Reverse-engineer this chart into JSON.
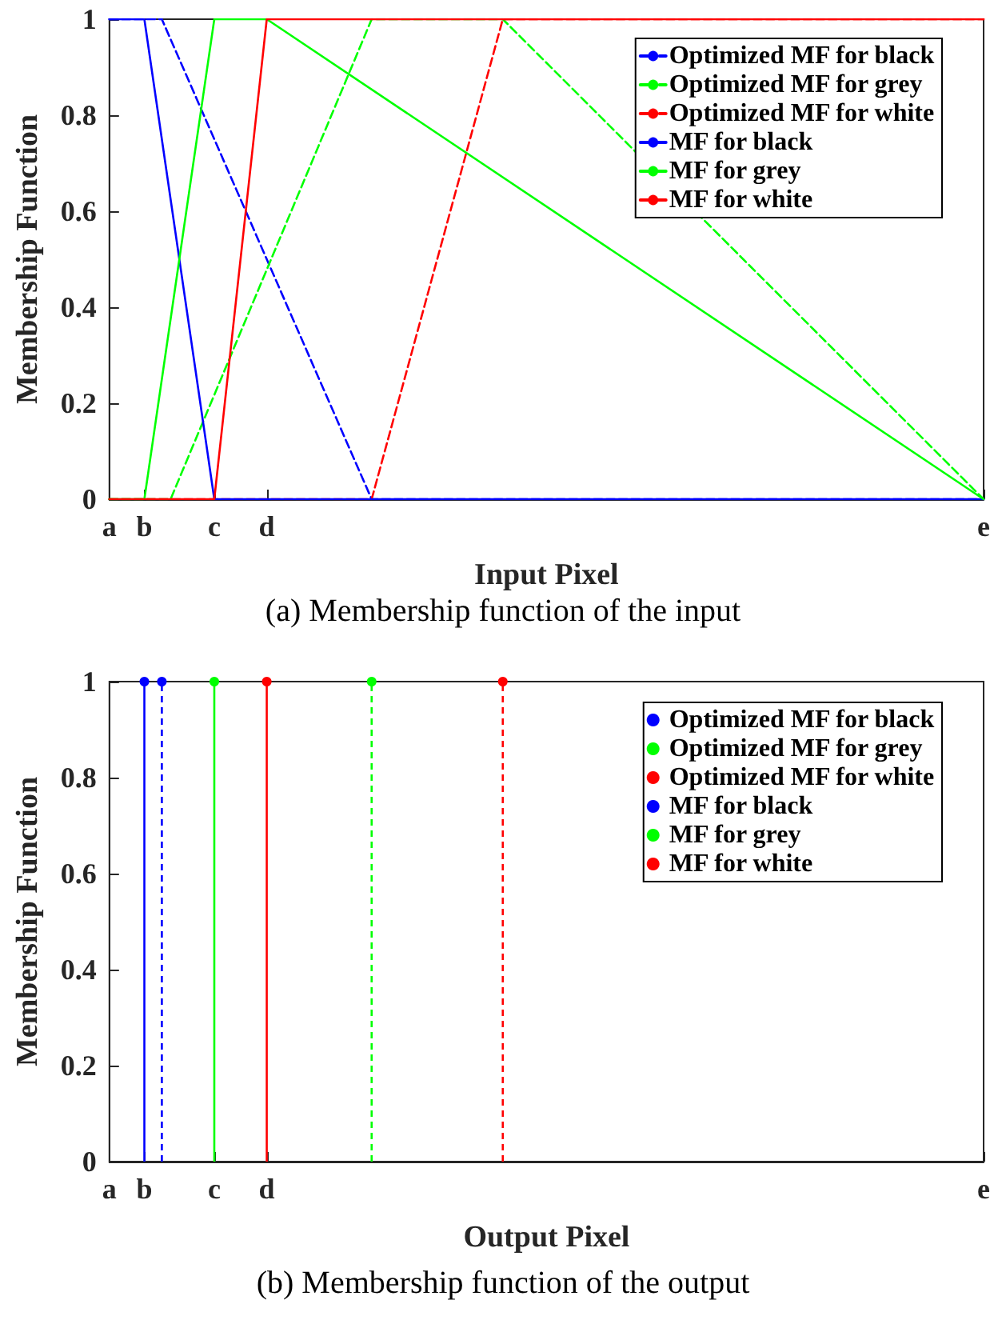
{
  "chart_data": [
    {
      "type": "line",
      "xlabel": "Input Pixel",
      "ylabel": "Membership Function",
      "annotations": [
        "(a) Membership function of the input"
      ],
      "categories": [
        "a",
        null,
        null,
        null,
        "b",
        null,
        null,
        null,
        null,
        null,
        null,
        null,
        "c",
        null,
        null,
        null,
        null,
        null,
        "d",
        null,
        null,
        null,
        null,
        null,
        null,
        null,
        null,
        null,
        null,
        null,
        null,
        null,
        null,
        null,
        null,
        null,
        null,
        null,
        null,
        null,
        null,
        null,
        null,
        null,
        null,
        null,
        null,
        null,
        null,
        null,
        null,
        null,
        null,
        null,
        null,
        null,
        null,
        null,
        null,
        null,
        null,
        null,
        null,
        null,
        null,
        null,
        null,
        null,
        null,
        null,
        null,
        null,
        null,
        null,
        null,
        null,
        null,
        null,
        null,
        null,
        null,
        null,
        null,
        null,
        null,
        null,
        null,
        null,
        null,
        null,
        null,
        null,
        null,
        null,
        null,
        null,
        null,
        null,
        null,
        null,
        "e"
      ],
      "ylim": [
        0,
        1
      ],
      "yticks": [
        0,
        0.2,
        0.4,
        0.6,
        0.8,
        1
      ],
      "grid": false,
      "legend": "top right",
      "marker": "none",
      "series": [
        {
          "name": "Optimized MF for black",
          "color": "#0000ff",
          "line_style": "dashed",
          "values": [
            1,
            null,
            null,
            null,
            null,
            null,
            1,
            null,
            null,
            null,
            null,
            null,
            null,
            null,
            null,
            null,
            null,
            null,
            null,
            null,
            null,
            null,
            null,
            null,
            null,
            null,
            null,
            null,
            null,
            null,
            0,
            null,
            null,
            null,
            null,
            null,
            null,
            null,
            null,
            null,
            null,
            null,
            null,
            null,
            null,
            null,
            null,
            null,
            null,
            null,
            null,
            null,
            null,
            null,
            null,
            null,
            null,
            null,
            null,
            null,
            null,
            null,
            null,
            null,
            null,
            null,
            null,
            null,
            null,
            null,
            null,
            null,
            null,
            null,
            null,
            null,
            null,
            null,
            null,
            null,
            null,
            null,
            null,
            null,
            null,
            null,
            null,
            null,
            null,
            null,
            null,
            null,
            null,
            null,
            null,
            null,
            null,
            null,
            null,
            null,
            0
          ]
        },
        {
          "name": "Optimized MF for grey",
          "color": "#00ff00",
          "line_style": "dashed",
          "values": [
            0,
            null,
            null,
            null,
            null,
            null,
            null,
            0,
            null,
            null,
            null,
            null,
            null,
            null,
            null,
            null,
            null,
            null,
            null,
            null,
            null,
            null,
            null,
            null,
            null,
            null,
            null,
            null,
            null,
            null,
            1,
            null,
            null,
            null,
            null,
            null,
            null,
            null,
            null,
            null,
            null,
            null,
            null,
            null,
            null,
            1,
            null,
            null,
            null,
            null,
            null,
            null,
            null,
            null,
            null,
            null,
            null,
            null,
            null,
            null,
            null,
            null,
            null,
            null,
            null,
            null,
            null,
            null,
            null,
            null,
            null,
            null,
            null,
            null,
            null,
            null,
            null,
            null,
            null,
            null,
            null,
            null,
            null,
            null,
            null,
            null,
            null,
            null,
            null,
            null,
            null,
            null,
            null,
            null,
            null,
            null,
            null,
            null,
            null,
            null,
            0
          ]
        },
        {
          "name": "Optimized MF for white",
          "color": "#ff0000",
          "line_style": "dashed",
          "values": [
            0,
            null,
            null,
            null,
            null,
            null,
            null,
            null,
            null,
            null,
            null,
            null,
            null,
            null,
            null,
            null,
            null,
            null,
            null,
            null,
            null,
            null,
            null,
            null,
            null,
            null,
            null,
            null,
            null,
            null,
            0,
            null,
            null,
            null,
            null,
            null,
            null,
            null,
            null,
            null,
            null,
            null,
            null,
            null,
            null,
            1,
            null,
            null,
            null,
            null,
            null,
            null,
            null,
            null,
            null,
            null,
            null,
            null,
            null,
            null,
            null,
            null,
            null,
            null,
            null,
            null,
            null,
            null,
            null,
            null,
            null,
            null,
            null,
            null,
            null,
            null,
            null,
            null,
            null,
            null,
            null,
            null,
            null,
            null,
            null,
            null,
            null,
            null,
            null,
            null,
            null,
            null,
            null,
            null,
            null,
            null,
            null,
            null,
            null,
            null,
            1
          ]
        },
        {
          "name": "MF for black",
          "color": "#0000ff",
          "line_style": "solid",
          "values": [
            1,
            null,
            null,
            null,
            1,
            null,
            null,
            null,
            null,
            null,
            null,
            null,
            0,
            null,
            null,
            null,
            null,
            null,
            null,
            null,
            null,
            null,
            null,
            null,
            null,
            null,
            null,
            null,
            null,
            null,
            null,
            null,
            null,
            null,
            null,
            null,
            null,
            null,
            null,
            null,
            null,
            null,
            null,
            null,
            null,
            null,
            null,
            null,
            null,
            null,
            null,
            null,
            null,
            null,
            null,
            null,
            null,
            null,
            null,
            null,
            null,
            null,
            null,
            null,
            null,
            null,
            null,
            null,
            null,
            null,
            null,
            null,
            null,
            null,
            null,
            null,
            null,
            null,
            null,
            null,
            null,
            null,
            null,
            null,
            null,
            null,
            null,
            null,
            null,
            null,
            null,
            null,
            null,
            null,
            null,
            null,
            null,
            null,
            null,
            null,
            0
          ]
        },
        {
          "name": "MF for grey",
          "color": "#00ff00",
          "line_style": "solid",
          "values": [
            0,
            null,
            null,
            null,
            0,
            null,
            null,
            null,
            null,
            null,
            null,
            null,
            1,
            null,
            null,
            null,
            null,
            null,
            1,
            null,
            null,
            null,
            null,
            null,
            null,
            null,
            null,
            null,
            null,
            null,
            null,
            null,
            null,
            null,
            null,
            null,
            null,
            null,
            null,
            null,
            null,
            null,
            null,
            null,
            null,
            null,
            null,
            null,
            null,
            null,
            null,
            null,
            null,
            null,
            null,
            null,
            null,
            null,
            null,
            null,
            null,
            null,
            null,
            null,
            null,
            null,
            null,
            null,
            null,
            null,
            null,
            null,
            null,
            null,
            null,
            null,
            null,
            null,
            null,
            null,
            null,
            null,
            null,
            null,
            null,
            null,
            null,
            null,
            null,
            null,
            null,
            null,
            null,
            null,
            null,
            null,
            null,
            null,
            null,
            null,
            0
          ]
        },
        {
          "name": "MF for white",
          "color": "#ff0000",
          "line_style": "solid",
          "values": [
            0,
            null,
            null,
            null,
            null,
            null,
            null,
            null,
            null,
            null,
            null,
            null,
            0,
            null,
            null,
            null,
            null,
            null,
            1,
            null,
            null,
            null,
            null,
            null,
            null,
            null,
            null,
            null,
            null,
            null,
            null,
            null,
            null,
            null,
            null,
            null,
            null,
            null,
            null,
            null,
            null,
            null,
            null,
            null,
            null,
            null,
            null,
            null,
            null,
            null,
            null,
            null,
            null,
            null,
            null,
            null,
            null,
            null,
            null,
            null,
            null,
            null,
            null,
            null,
            null,
            null,
            null,
            null,
            null,
            null,
            null,
            null,
            null,
            null,
            null,
            null,
            null,
            null,
            null,
            null,
            null,
            null,
            null,
            null,
            null,
            null,
            null,
            null,
            null,
            null,
            null,
            null,
            null,
            null,
            null,
            null,
            null,
            null,
            null,
            null,
            1
          ]
        }
      ]
    },
    {
      "type": "lollipop",
      "xlabel": "Output Pixel",
      "ylabel": "Membership Function",
      "annotations": [
        "(b) Membership function of the output"
      ],
      "categories": [
        "a",
        null,
        null,
        null,
        "b",
        null,
        null,
        null,
        null,
        null,
        null,
        null,
        "c",
        null,
        null,
        null,
        null,
        null,
        "d",
        null,
        null,
        null,
        null,
        null,
        null,
        null,
        null,
        null,
        null,
        null,
        null,
        null,
        null,
        null,
        null,
        null,
        null,
        null,
        null,
        null,
        null,
        null,
        null,
        null,
        null,
        null,
        null,
        null,
        null,
        null,
        null,
        null,
        null,
        null,
        null,
        null,
        null,
        null,
        null,
        null,
        null,
        null,
        null,
        null,
        null,
        null,
        null,
        null,
        null,
        null,
        null,
        null,
        null,
        null,
        null,
        null,
        null,
        null,
        null,
        null,
        null,
        null,
        null,
        null,
        null,
        null,
        null,
        null,
        null,
        null,
        null,
        null,
        null,
        null,
        null,
        null,
        null,
        null,
        null,
        null,
        "e"
      ],
      "ylim": [
        0,
        1
      ],
      "yticks": [
        0,
        0.2,
        0.4,
        0.6,
        0.8,
        1
      ],
      "grid": false,
      "legend": "top right",
      "marker": "circle",
      "series": [
        {
          "name": "Optimized MF for black",
          "color": "#0000ff",
          "line_style": "dashed",
          "values": [
            null,
            null,
            null,
            null,
            null,
            null,
            1,
            null,
            null,
            null,
            null,
            null,
            null,
            null,
            null,
            null,
            null,
            null,
            null,
            null,
            null,
            null,
            null,
            null,
            null,
            null,
            null,
            null,
            null,
            null,
            null,
            null,
            null,
            null,
            null,
            null,
            null,
            null,
            null,
            null,
            null,
            null,
            null,
            null,
            null,
            null,
            null,
            null,
            null,
            null,
            null,
            null,
            null,
            null,
            null,
            null,
            null,
            null,
            null,
            null,
            null,
            null,
            null,
            null,
            null,
            null,
            null,
            null,
            null,
            null,
            null,
            null,
            null,
            null,
            null,
            null,
            null,
            null,
            null,
            null,
            null,
            null,
            null,
            null,
            null,
            null,
            null,
            null,
            null,
            null,
            null,
            null,
            null,
            null,
            null,
            null,
            null,
            null,
            null,
            null,
            null
          ]
        },
        {
          "name": "Optimized MF for grey",
          "color": "#00ff00",
          "line_style": "dashed",
          "values": [
            null,
            null,
            null,
            null,
            null,
            null,
            null,
            null,
            null,
            null,
            null,
            null,
            null,
            null,
            null,
            null,
            null,
            null,
            null,
            null,
            null,
            null,
            null,
            null,
            null,
            null,
            null,
            null,
            null,
            null,
            1,
            null,
            null,
            null,
            null,
            null,
            null,
            null,
            null,
            null,
            null,
            null,
            null,
            null,
            null,
            null,
            null,
            null,
            null,
            null,
            null,
            null,
            null,
            null,
            null,
            null,
            null,
            null,
            null,
            null,
            null,
            null,
            null,
            null,
            null,
            null,
            null,
            null,
            null,
            null,
            null,
            null,
            null,
            null,
            null,
            null,
            null,
            null,
            null,
            null,
            null,
            null,
            null,
            null,
            null,
            null,
            null,
            null,
            null,
            null,
            null,
            null,
            null,
            null,
            null,
            null,
            null,
            null,
            null,
            null,
            null
          ]
        },
        {
          "name": "Optimized MF for white",
          "color": "#ff0000",
          "line_style": "dashed",
          "values": [
            null,
            null,
            null,
            null,
            null,
            null,
            null,
            null,
            null,
            null,
            null,
            null,
            null,
            null,
            null,
            null,
            null,
            null,
            null,
            null,
            null,
            null,
            null,
            null,
            null,
            null,
            null,
            null,
            null,
            null,
            null,
            null,
            null,
            null,
            null,
            null,
            null,
            null,
            null,
            null,
            null,
            null,
            null,
            null,
            null,
            1,
            null,
            null,
            null,
            null,
            null,
            null,
            null,
            null,
            null,
            null,
            null,
            null,
            null,
            null,
            null,
            null,
            null,
            null,
            null,
            null,
            null,
            null,
            null,
            null,
            null,
            null,
            null,
            null,
            null,
            null,
            null,
            null,
            null,
            null,
            null,
            null,
            null,
            null,
            null,
            null,
            null,
            null,
            null,
            null,
            null,
            null,
            null,
            null,
            null,
            null,
            null,
            null,
            null,
            null,
            null
          ]
        },
        {
          "name": "MF for black",
          "color": "#0000ff",
          "line_style": "solid",
          "values": [
            null,
            null,
            null,
            null,
            1,
            null,
            null,
            null,
            null,
            null,
            null,
            null,
            null,
            null,
            null,
            null,
            null,
            null,
            null,
            null,
            null,
            null,
            null,
            null,
            null,
            null,
            null,
            null,
            null,
            null,
            null,
            null,
            null,
            null,
            null,
            null,
            null,
            null,
            null,
            null,
            null,
            null,
            null,
            null,
            null,
            null,
            null,
            null,
            null,
            null,
            null,
            null,
            null,
            null,
            null,
            null,
            null,
            null,
            null,
            null,
            null,
            null,
            null,
            null,
            null,
            null,
            null,
            null,
            null,
            null,
            null,
            null,
            null,
            null,
            null,
            null,
            null,
            null,
            null,
            null,
            null,
            null,
            null,
            null,
            null,
            null,
            null,
            null,
            null,
            null,
            null,
            null,
            null,
            null,
            null,
            null,
            null,
            null,
            null,
            null,
            null
          ]
        },
        {
          "name": "MF for grey",
          "color": "#00ff00",
          "line_style": "solid",
          "values": [
            null,
            null,
            null,
            null,
            null,
            null,
            null,
            null,
            null,
            null,
            null,
            null,
            1,
            null,
            null,
            null,
            null,
            null,
            null,
            null,
            null,
            null,
            null,
            null,
            null,
            null,
            null,
            null,
            null,
            null,
            null,
            null,
            null,
            null,
            null,
            null,
            null,
            null,
            null,
            null,
            null,
            null,
            null,
            null,
            null,
            null,
            null,
            null,
            null,
            null,
            null,
            null,
            null,
            null,
            null,
            null,
            null,
            null,
            null,
            null,
            null,
            null,
            null,
            null,
            null,
            null,
            null,
            null,
            null,
            null,
            null,
            null,
            null,
            null,
            null,
            null,
            null,
            null,
            null,
            null,
            null,
            null,
            null,
            null,
            null,
            null,
            null,
            null,
            null,
            null,
            null,
            null,
            null,
            null,
            null,
            null,
            null,
            null,
            null,
            null,
            null
          ]
        },
        {
          "name": "MF for white",
          "color": "#ff0000",
          "line_style": "solid",
          "values": [
            null,
            null,
            null,
            null,
            null,
            null,
            null,
            null,
            null,
            null,
            null,
            null,
            null,
            null,
            null,
            null,
            null,
            null,
            1,
            null,
            null,
            null,
            null,
            null,
            null,
            null,
            null,
            null,
            null,
            null,
            null,
            null,
            null,
            null,
            null,
            null,
            null,
            null,
            null,
            null,
            null,
            null,
            null,
            null,
            null,
            null,
            null,
            null,
            null,
            null,
            null,
            null,
            null,
            null,
            null,
            null,
            null,
            null,
            null,
            null,
            null,
            null,
            null,
            null,
            null,
            null,
            null,
            null,
            null,
            null,
            null,
            null,
            null,
            null,
            null,
            null,
            null,
            null,
            null,
            null,
            null,
            null,
            null,
            null,
            null,
            null,
            null,
            null,
            null,
            null,
            null,
            null,
            null,
            null,
            null,
            null,
            null,
            null,
            null,
            null,
            null
          ]
        }
      ]
    }
  ]
}
